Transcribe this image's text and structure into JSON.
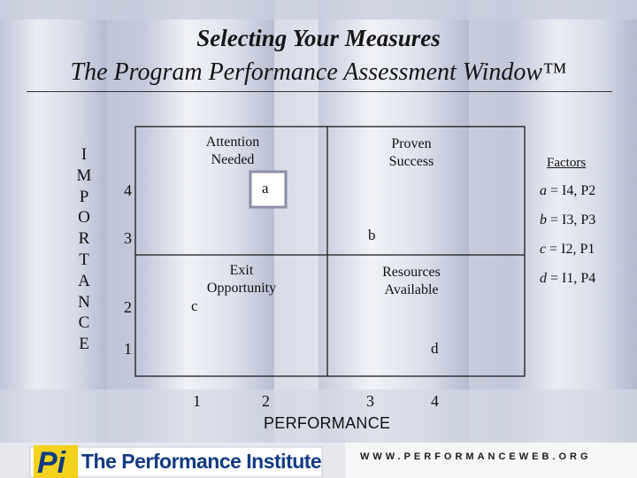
{
  "title": "Selecting Your Measures",
  "subtitle": "The Program Performance Assessment Window™",
  "y_axis_label": [
    "I",
    "M",
    "P",
    "O",
    "R",
    "T",
    "A",
    "N",
    "C",
    "E"
  ],
  "x_axis_label": "PERFORMANCE",
  "quadrants": {
    "top_left": [
      "Attention",
      "Needed"
    ],
    "top_right": [
      "Proven",
      "Success"
    ],
    "bottom_left": [
      "Exit",
      "Opportunity"
    ],
    "bottom_right": [
      "Resources",
      "Available"
    ]
  },
  "factors": {
    "heading": "Factors",
    "items": [
      {
        "letter": "a",
        "text": " = I4, P2"
      },
      {
        "letter": "b",
        "text": " = I3, P3"
      },
      {
        "letter": "c",
        "text": " = I2, P1"
      },
      {
        "letter": "d",
        "text": " = I1, P4"
      }
    ]
  },
  "chart_data": {
    "type": "scatter",
    "xlabel": "PERFORMANCE",
    "ylabel": "IMPORTANCE",
    "x_ticks": [
      "1",
      "2",
      "3",
      "4"
    ],
    "y_ticks": [
      "4",
      "3",
      "2",
      "1"
    ],
    "points": [
      {
        "label": "a",
        "importance": 4,
        "performance": 2
      },
      {
        "label": "b",
        "importance": 3,
        "performance": 3
      },
      {
        "label": "c",
        "importance": 2,
        "performance": 1
      },
      {
        "label": "d",
        "importance": 1,
        "performance": 4
      }
    ]
  },
  "footer": {
    "logo_mark": "Pi",
    "logo_text": "The Performance Institute",
    "url": "WWW.PERFORMANCEWEB.ORG"
  },
  "colors": {
    "background": "#d9dde9",
    "footer_blue": "#123a82",
    "logo_yellow": "#f2d21c"
  }
}
